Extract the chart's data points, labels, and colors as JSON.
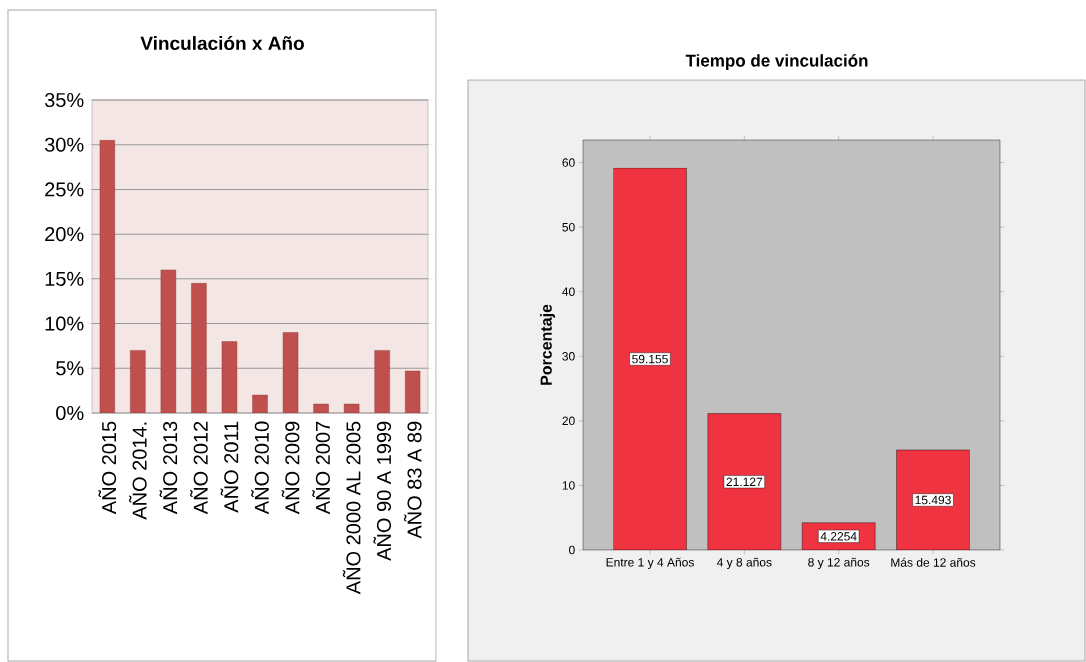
{
  "chart_data": [
    {
      "type": "bar",
      "title": "Vinculación x Año",
      "categories": [
        "AÑO 2015",
        "AÑO 2014.",
        "AÑO 2013",
        "AÑO 2012",
        "AÑO 2011",
        "AÑO 2010",
        "AÑO 2009",
        "AÑO 2007",
        "AÑO 2000 AL 2005",
        "AÑO 90 A 1999",
        "AÑO 83 A 89"
      ],
      "values": [
        30.5,
        7,
        16,
        14.5,
        8,
        2,
        9,
        1,
        1,
        7,
        4.7
      ],
      "color": "#c0504d",
      "ylim": [
        0,
        35
      ],
      "yticks": [
        {
          "value": 0,
          "label": "0%"
        },
        {
          "value": 5,
          "label": "5%"
        },
        {
          "value": 10,
          "label": "10%"
        },
        {
          "value": 15,
          "label": "15%"
        },
        {
          "value": 20,
          "label": "20%"
        },
        {
          "value": 25,
          "label": "25%"
        },
        {
          "value": 30,
          "label": "30%"
        },
        {
          "value": 35,
          "label": "35%"
        }
      ],
      "grid": "y"
    },
    {
      "type": "bar",
      "title": "Tiempo de vinculación",
      "ylabel": "Porcentaje",
      "categories": [
        "Entre 1 y 4 Años",
        "4 y 8 años",
        "8 y 12 años",
        "Más de 12 años"
      ],
      "values": [
        59.155,
        21.127,
        4.2254,
        15.493
      ],
      "color": "#ef3340",
      "ylim": [
        0,
        63.5
      ],
      "yticks": [
        0,
        10,
        20,
        30,
        40,
        50,
        60
      ],
      "data_labels": true
    }
  ]
}
